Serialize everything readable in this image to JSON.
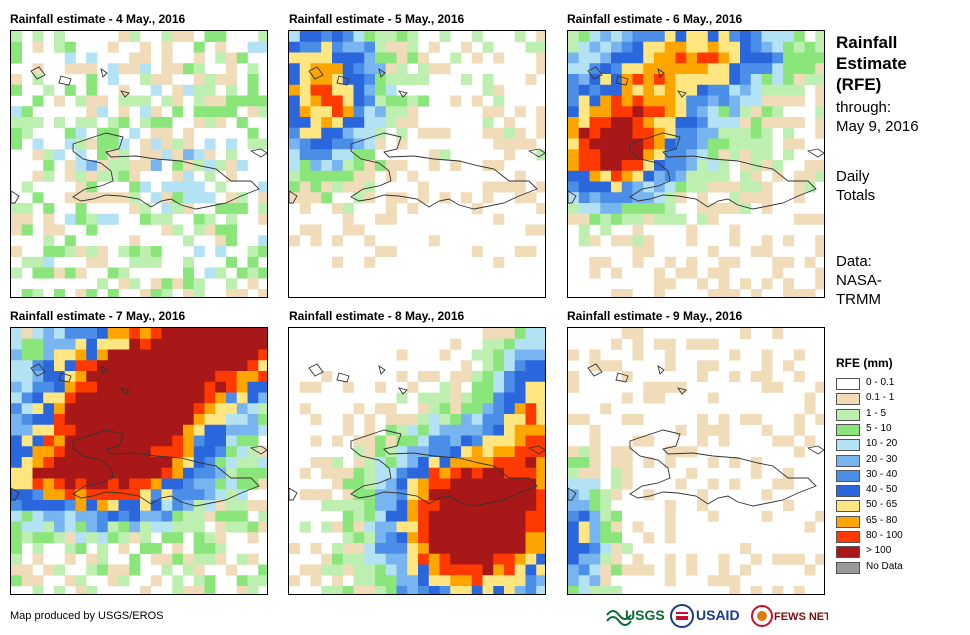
{
  "panels": [
    {
      "title": "Rainfall estimate - 4 May., 2016",
      "day": "4"
    },
    {
      "title": "Rainfall estimate - 5 May., 2016",
      "day": "5"
    },
    {
      "title": "Rainfall estimate - 6 May., 2016",
      "day": "6"
    },
    {
      "title": "Rainfall estimate - 7 May., 2016",
      "day": "7"
    },
    {
      "title": "Rainfall estimate - 8 May., 2016",
      "day": "8"
    },
    {
      "title": "Rainfall estimate - 9 May., 2016",
      "day": "9"
    }
  ],
  "side": {
    "title_line1": "Rainfall",
    "title_line2": "Estimate",
    "title_line3": "(RFE)",
    "through_label": "through:",
    "through_date": "May 9, 2016",
    "totals_line1": "Daily",
    "totals_line2": "Totals",
    "data_label": "Data:",
    "data_source_line1": "NASA-",
    "data_source_line2": "TRMM"
  },
  "legend": {
    "title": "RFE (mm)",
    "items": [
      {
        "label": "0 - 0.1",
        "color": "#ffffff"
      },
      {
        "label": "0.1 - 1",
        "color": "#f0dcb9"
      },
      {
        "label": "1 - 5",
        "color": "#bdf0b0"
      },
      {
        "label": "5 - 10",
        "color": "#8ae67a"
      },
      {
        "label": "10 - 20",
        "color": "#b4e2f5"
      },
      {
        "label": "20 - 30",
        "color": "#78b4f0"
      },
      {
        "label": "30 - 40",
        "color": "#4a8ee8"
      },
      {
        "label": "40 - 50",
        "color": "#2a66dc"
      },
      {
        "label": "50 - 65",
        "color": "#ffe680"
      },
      {
        "label": "65 - 80",
        "color": "#ffa500"
      },
      {
        "label": "80 - 100",
        "color": "#ff3a00"
      },
      {
        "label": "> 100",
        "color": "#a81818"
      },
      {
        "label": "No Data",
        "color": "#999999"
      }
    ]
  },
  "footer": {
    "credit": "Map produced by USGS/EROS"
  },
  "logos": {
    "usgs": "USGS",
    "usaid": "USAID",
    "fewsnet": "FEWS NET"
  }
}
